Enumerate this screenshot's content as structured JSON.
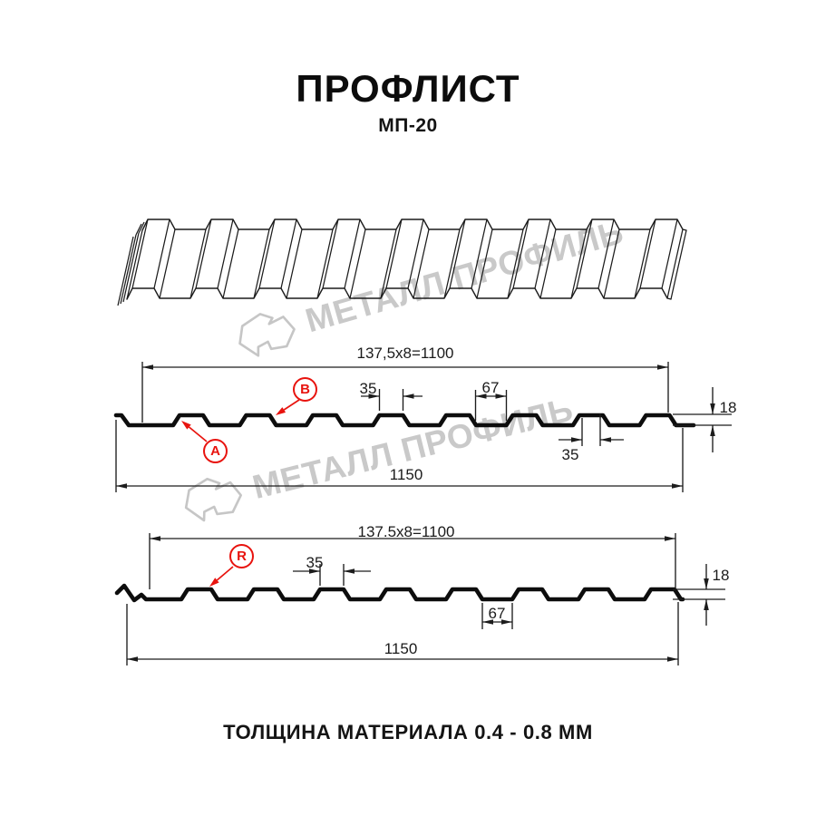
{
  "page": {
    "title": "ПРОФЛИСТ",
    "subtitle": "МП-20",
    "footer_note": "ТОЛЩИНА МАТЕРИАЛА 0.4 - 0.8 ММ"
  },
  "watermark": {
    "brand": "МЕТАЛЛ ПРОФИЛЬ"
  },
  "section1": {
    "pitch_formula": "137,5x8=1100",
    "total_width": "1150",
    "crest_width_top": "35",
    "valley_width": "67",
    "crest_width_bottom": "35",
    "profile_height": "18",
    "label_a": "A",
    "label_b": "B"
  },
  "section2": {
    "pitch_formula": "137.5x8=1100",
    "total_width": "1150",
    "crest_width": "35",
    "valley_width": "67",
    "profile_height": "18",
    "label_r": "R"
  },
  "colors": {
    "ink": "#1c1c1c",
    "profile": "#0d0d0d",
    "red": "#e8130e",
    "watermark_gray": "#c9c9c9"
  }
}
